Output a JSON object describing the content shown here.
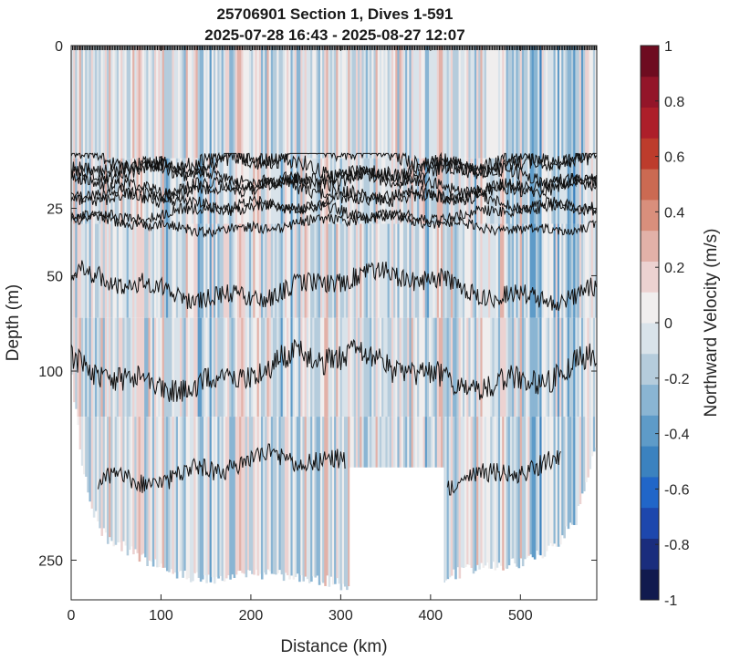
{
  "chart_data": {
    "type": "heatmap",
    "title": "25706901 Section 1, Dives 1-591",
    "subtitle": "2025-07-28 16:43 - 2025-08-27 12:07",
    "xlabel": "Distance (km)",
    "ylabel": "Depth (m)",
    "xlim": [
      0,
      585
    ],
    "ylim": [
      0,
      290
    ],
    "y_scale": "sqrt",
    "y_reversed": true,
    "x_ticks": [
      0,
      100,
      200,
      300,
      400,
      500
    ],
    "y_ticks": [
      0,
      25,
      50,
      100,
      250
    ],
    "x_tick_labels": [
      "0",
      "100",
      "200",
      "300",
      "400",
      "500"
    ],
    "y_tick_labels": [
      "0",
      "25",
      "50",
      "100",
      "250"
    ],
    "colorbar": {
      "label": "Northward Velocity (m/s)",
      "range": [
        -1,
        1
      ],
      "ticks": [
        1,
        0.8,
        0.6,
        0.4,
        0.2,
        0,
        -0.2,
        -0.4,
        -0.6,
        -0.8,
        -1
      ],
      "tick_labels": [
        "1",
        "0.8",
        "0.6",
        "0.4",
        "0.2",
        "0",
        "-0.2",
        "-0.4",
        "-0.6",
        "-0.8",
        "-1"
      ],
      "colors": [
        "#111a4e",
        "#1a2d7d",
        "#1d47ad",
        "#2166c8",
        "#3b82bf",
        "#5e9bc8",
        "#8ab5d3",
        "#b5ccdc",
        "#d9e3ea",
        "#f0eeee",
        "#ecd2d1",
        "#e2b1a8",
        "#d98f7c",
        "#cb6a52",
        "#bd3c2c",
        "#ad1f2a",
        "#931529",
        "#6e0c20"
      ]
    },
    "bottom_depth": {
      "x": [
        0,
        10,
        20,
        30,
        40,
        50,
        70,
        90,
        110,
        130,
        150,
        170,
        190,
        210,
        230,
        250,
        270,
        290,
        305,
        310,
        415,
        420,
        440,
        460,
        480,
        500,
        520,
        540,
        560,
        575,
        585
      ],
      "depth": [
        110,
        165,
        200,
        225,
        235,
        240,
        250,
        260,
        268,
        272,
        274,
        273,
        272,
        270,
        270,
        272,
        274,
        278,
        282,
        283,
        276,
        272,
        265,
        262,
        260,
        258,
        250,
        240,
        220,
        180,
        150
      ]
    },
    "data_gap": {
      "x_range": [
        310,
        415
      ],
      "top_depth": 168
    },
    "contour_mean_depths": [
      12,
      14,
      16,
      18,
      20,
      23,
      26,
      30,
      55,
      100,
      170
    ],
    "contour_x_range": [
      0,
      585
    ],
    "deep_contour_x_range": [
      30,
      545
    ]
  }
}
